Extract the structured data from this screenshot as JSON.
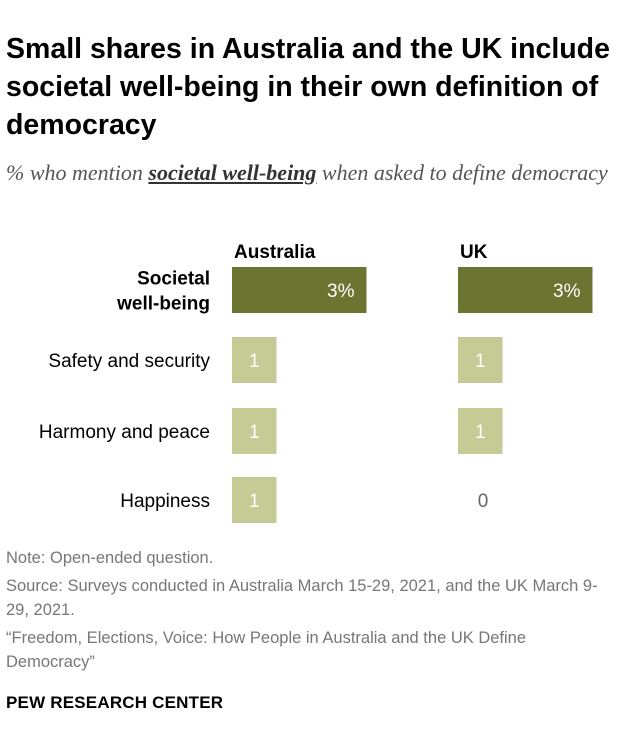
{
  "title": "Small shares in Australia and the UK include societal well-being in their own definition of democracy",
  "subtitle": {
    "prefix": "% who mention",
    "emphasis": "societal well-being",
    "suffix": "when asked to define democracy"
  },
  "colors": {
    "highlight_bar": "#6b7431",
    "bar": "#c6ca94",
    "label_on_bar": "#ffffff",
    "zero_label": "#666666"
  },
  "chart_data": {
    "type": "bar",
    "orientation": "horizontal",
    "categories": [
      "Societal well-being",
      "Safety and security",
      "Harmony and peace",
      "Happiness"
    ],
    "category_lines": [
      [
        "Societal",
        "well-being"
      ],
      [
        "Safety and security"
      ],
      [
        "Harmony and peace"
      ],
      [
        "Happiness"
      ]
    ],
    "series": [
      {
        "name": "Australia",
        "values": [
          3,
          1,
          1,
          1
        ],
        "labels": [
          "3%",
          "1",
          "1",
          "1"
        ]
      },
      {
        "name": "UK",
        "values": [
          3,
          1,
          1,
          0
        ],
        "labels": [
          "3%",
          "1",
          "1",
          "0"
        ]
      }
    ],
    "highlight_category": 0,
    "xlim": [
      0,
      3
    ]
  },
  "notes": {
    "note": "Note: Open-ended question.",
    "source": "Source: Surveys conducted in Australia March 15-29, 2021, and the UK March 9-29, 2021.",
    "report": "“Freedom, Elections, Voice: How People in Australia and the UK Define Democracy”"
  },
  "brand": "PEW RESEARCH CENTER"
}
